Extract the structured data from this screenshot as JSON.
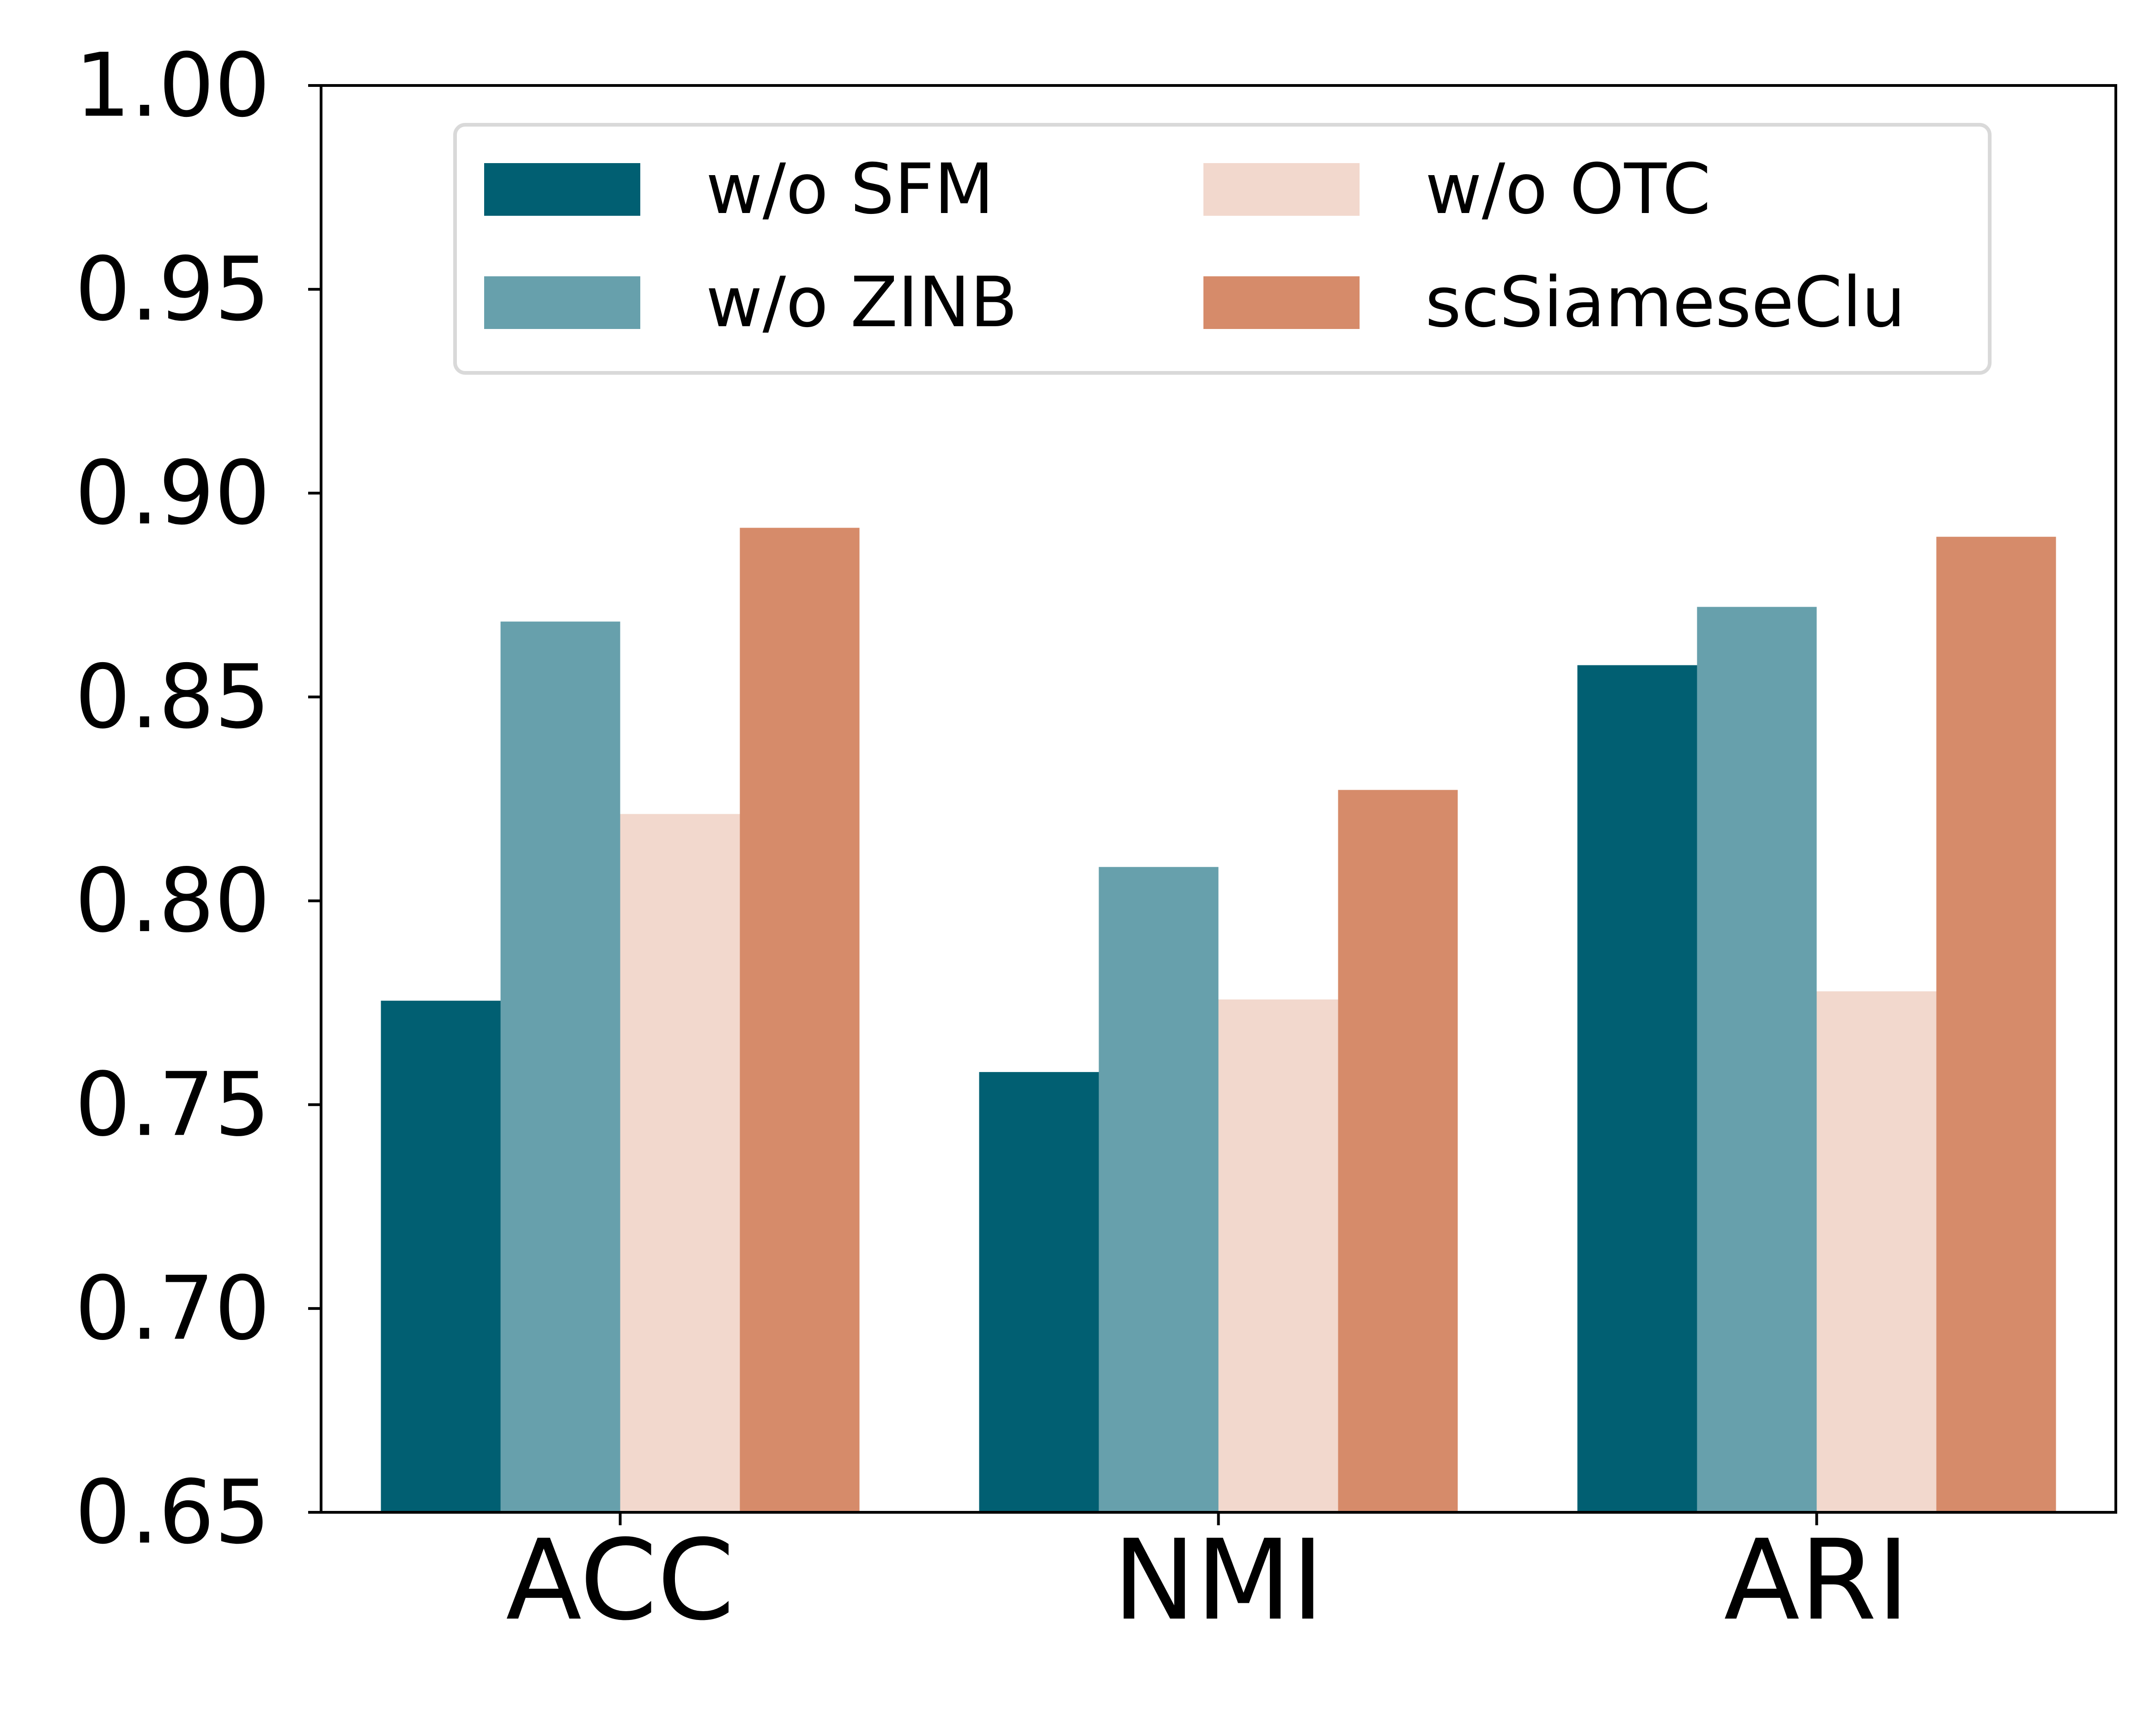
{
  "chart_data": {
    "type": "bar",
    "title": "",
    "xlabel": "",
    "ylabel": "",
    "categories": [
      "ACC",
      "NMI",
      "ARI"
    ],
    "series": [
      {
        "name": "w/o SFM",
        "color": "#015f72",
        "values": [
          0.7755,
          0.758,
          0.8578
        ]
      },
      {
        "name": "w/o ZINB",
        "color": "#67a0ac",
        "values": [
          0.8685,
          0.8083,
          0.8721
        ]
      },
      {
        "name": "w/o OTC",
        "color": "#f2d8cd",
        "values": [
          0.8213,
          0.7758,
          0.7778
        ]
      },
      {
        "name": "scSiameseClu",
        "color": "#d68b6a",
        "values": [
          0.8915,
          0.8272,
          0.8893
        ]
      }
    ],
    "ylim": [
      0.65,
      1.0
    ],
    "yticks": [
      "0.65",
      "0.70",
      "0.75",
      "0.80",
      "0.85",
      "0.90",
      "0.95",
      "1.00"
    ],
    "legend": {
      "position": "top-center",
      "columns": 2
    },
    "grid": false
  }
}
